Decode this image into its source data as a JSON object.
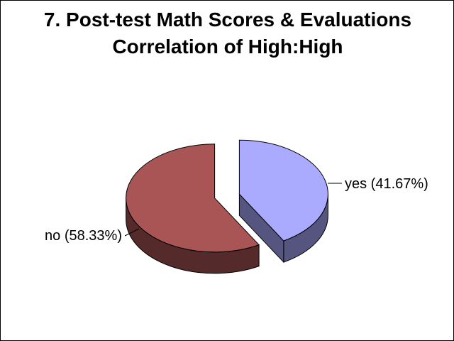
{
  "chart_data": {
    "type": "pie",
    "title_lines": [
      "7. Post-test Math Scores & Evaluations",
      "Correlation of High:High"
    ],
    "slices": [
      {
        "label": "yes",
        "value": 41.67,
        "display": "yes (41.67%)",
        "color": "#aaaaff",
        "side_color": "#555580"
      },
      {
        "label": "no",
        "value": 58.33,
        "display": "no (58.33%)",
        "color": "#aa5555",
        "side_color": "#552a2a"
      }
    ],
    "exploded": true,
    "three_d": true,
    "legend": "none"
  }
}
